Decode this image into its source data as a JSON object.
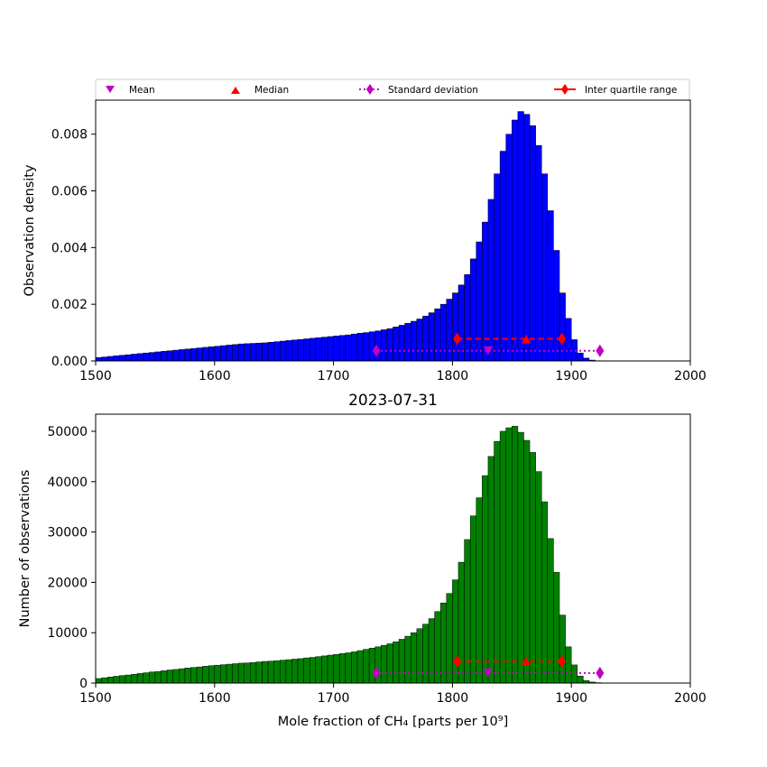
{
  "chart_data": [
    {
      "type": "bar",
      "panel": "top",
      "title": "",
      "xlabel": "",
      "ylabel": "Observation density",
      "xlim": [
        1500,
        2000
      ],
      "ylim": [
        0,
        0.0092
      ],
      "xticks": [
        1500,
        1600,
        1700,
        1800,
        1900,
        2000
      ],
      "yticks": [
        0.0,
        0.002,
        0.004,
        0.006,
        0.008
      ],
      "ytick_labels": [
        "0.000",
        "0.002",
        "0.004",
        "0.006",
        "0.008"
      ],
      "bar_color": "#0000ff",
      "bin_start": 1500,
      "bin_width": 5,
      "values": [
        0.00012,
        0.00014,
        0.00016,
        0.00018,
        0.0002,
        0.00022,
        0.00024,
        0.00026,
        0.00028,
        0.0003,
        0.00032,
        0.00034,
        0.00036,
        0.00038,
        0.0004,
        0.00042,
        0.00044,
        0.00046,
        0.00048,
        0.0005,
        0.00052,
        0.00054,
        0.00056,
        0.00058,
        0.0006,
        0.00061,
        0.00062,
        0.00063,
        0.00064,
        0.00066,
        0.00068,
        0.0007,
        0.00072,
        0.00074,
        0.00076,
        0.00078,
        0.0008,
        0.00082,
        0.00084,
        0.00086,
        0.00088,
        0.0009,
        0.00092,
        0.00095,
        0.00098,
        0.001,
        0.00103,
        0.00106,
        0.0011,
        0.00114,
        0.0012,
        0.00126,
        0.00133,
        0.0014,
        0.00148,
        0.00158,
        0.0017,
        0.00184,
        0.002,
        0.00218,
        0.0024,
        0.00268,
        0.00305,
        0.0036,
        0.0042,
        0.0049,
        0.0057,
        0.0066,
        0.0074,
        0.008,
        0.0085,
        0.0088,
        0.0087,
        0.0083,
        0.0076,
        0.0066,
        0.0053,
        0.0039,
        0.0024,
        0.0015,
        0.00075,
        0.00028,
        0.0001,
        3e-05,
        1e-05,
        4e-06,
        2e-06,
        1e-06,
        5e-07,
        0,
        0,
        0,
        0,
        0,
        0,
        0,
        0,
        0,
        0,
        0
      ],
      "markers": {
        "marker_y": 0.00036,
        "iqr_y": 0.00078,
        "mean": 1830,
        "median": 1862,
        "std_range": [
          1736,
          1924
        ],
        "iqr_range": [
          1804,
          1892
        ]
      }
    },
    {
      "type": "bar",
      "panel": "bottom",
      "title": "2023-07-31",
      "xlabel": "Mole fraction of CH₄ [parts per 10⁹]",
      "ylabel": "Number of observations",
      "xlim": [
        1500,
        2000
      ],
      "ylim": [
        0,
        53400
      ],
      "xticks": [
        1500,
        1600,
        1700,
        1800,
        1900,
        2000
      ],
      "yticks": [
        0,
        10000,
        20000,
        30000,
        40000,
        50000
      ],
      "ytick_labels": [
        "0",
        "10000",
        "20000",
        "30000",
        "40000",
        "50000"
      ],
      "bar_color": "#008000",
      "bin_start": 1500,
      "bin_width": 5,
      "values": [
        900,
        1050,
        1200,
        1350,
        1500,
        1600,
        1750,
        1900,
        2050,
        2200,
        2300,
        2450,
        2600,
        2700,
        2850,
        3000,
        3100,
        3200,
        3350,
        3450,
        3550,
        3650,
        3750,
        3850,
        3950,
        4000,
        4100,
        4200,
        4300,
        4350,
        4450,
        4550,
        4650,
        4750,
        4850,
        5000,
        5100,
        5250,
        5400,
        5550,
        5700,
        5850,
        6000,
        6200,
        6450,
        6700,
        6950,
        7200,
        7500,
        7800,
        8200,
        8700,
        9300,
        10000,
        10800,
        11700,
        12800,
        14200,
        15900,
        17800,
        20500,
        24000,
        28500,
        33200,
        36800,
        41200,
        45000,
        48000,
        50000,
        50700,
        51000,
        49800,
        48200,
        45800,
        42000,
        36000,
        28700,
        22000,
        13500,
        7200,
        3600,
        1400,
        500,
        200,
        80,
        30,
        10,
        5,
        2,
        0,
        0,
        0,
        0,
        0,
        0,
        0,
        0,
        0,
        0,
        0
      ],
      "markers": {
        "marker_y": 2000,
        "iqr_y": 4300,
        "mean": 1830,
        "median": 1862,
        "std_range": [
          1736,
          1924
        ],
        "iqr_range": [
          1804,
          1892
        ]
      }
    }
  ],
  "legend": {
    "placement": "above-top",
    "entries": [
      {
        "label": "Mean",
        "marker": "triangle-down",
        "color": "#bf00bf"
      },
      {
        "label": "Median",
        "marker": "triangle-up",
        "color": "#ff0000"
      },
      {
        "label": "Standard deviation",
        "marker": "diamond",
        "color": "#bf00bf",
        "line": "dotted"
      },
      {
        "label": "Inter quartile range",
        "marker": "diamond",
        "color": "#ff0000",
        "line": "solid"
      }
    ]
  }
}
